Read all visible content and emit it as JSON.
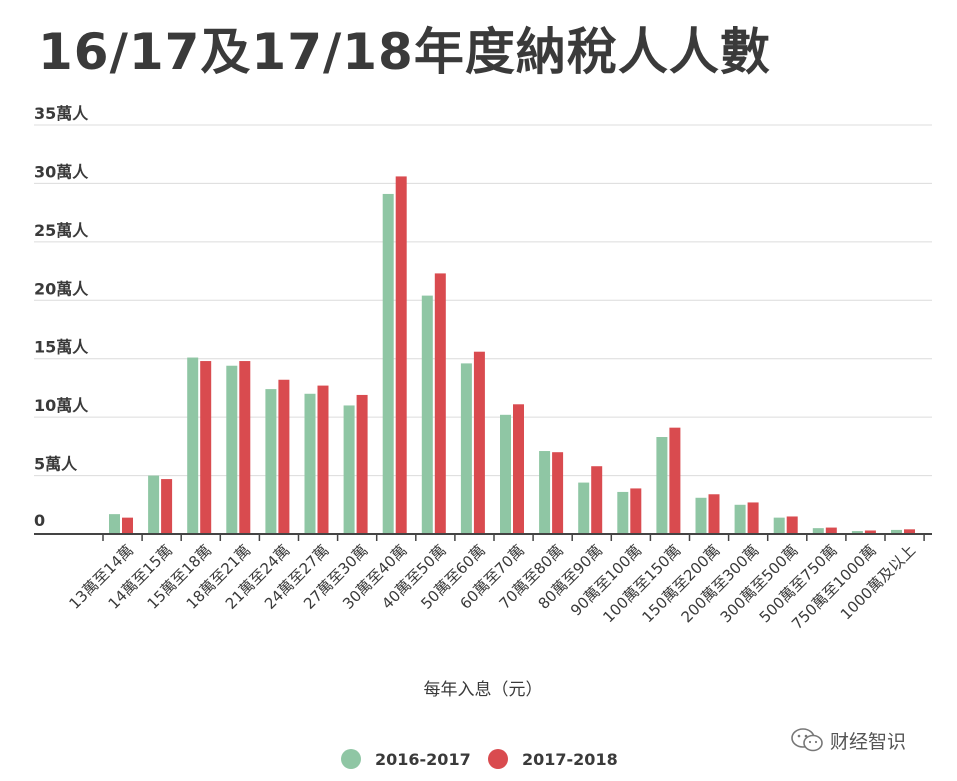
{
  "title": "16/17及17/18年度納稅人人數",
  "watermark": {
    "text": "财经智识",
    "icon": "wechat-icon"
  },
  "chart_data": {
    "type": "bar",
    "title": "16/17及17/18年度納稅人人數",
    "xlabel": "每年入息（元）",
    "ylabel": "",
    "ylim": [
      0,
      35
    ],
    "yticks": [
      {
        "value": 0,
        "label": "0"
      },
      {
        "value": 5,
        "label": "5萬人"
      },
      {
        "value": 10,
        "label": "10萬人"
      },
      {
        "value": 15,
        "label": "15萬人"
      },
      {
        "value": 20,
        "label": "20萬人"
      },
      {
        "value": 25,
        "label": "25萬人"
      },
      {
        "value": 30,
        "label": "30萬人"
      },
      {
        "value": 35,
        "label": "35萬人"
      }
    ],
    "grid": true,
    "legend": "bottom-center",
    "categories": [
      "13萬至14萬",
      "14萬至15萬",
      "15萬至18萬",
      "18萬至21萬",
      "21萬至24萬",
      "24萬至27萬",
      "27萬至30萬",
      "30萬至40萬",
      "40萬至50萬",
      "50萬至60萬",
      "60萬至70萬",
      "70萬至80萬",
      "80萬至90萬",
      "90萬至100萬",
      "100萬至150萬",
      "150萬至200萬",
      "200萬至300萬",
      "300萬至500萬",
      "500萬至750萬",
      "750萬至1000萬",
      "1000萬及以上"
    ],
    "series": [
      {
        "name": "2016-2017",
        "color": "#8fc6a4",
        "values": [
          1.7,
          5.0,
          15.1,
          14.4,
          12.4,
          12.0,
          11.0,
          29.1,
          20.4,
          14.6,
          10.2,
          7.1,
          4.4,
          3.6,
          8.3,
          3.1,
          2.5,
          1.4,
          0.5,
          0.25,
          0.35
        ]
      },
      {
        "name": "2017-2018",
        "color": "#d94b4f",
        "values": [
          1.4,
          4.7,
          14.8,
          14.8,
          13.2,
          12.7,
          11.9,
          30.6,
          22.3,
          15.6,
          11.1,
          7.0,
          5.8,
          3.9,
          9.1,
          3.4,
          2.7,
          1.5,
          0.55,
          0.3,
          0.4
        ]
      }
    ]
  }
}
